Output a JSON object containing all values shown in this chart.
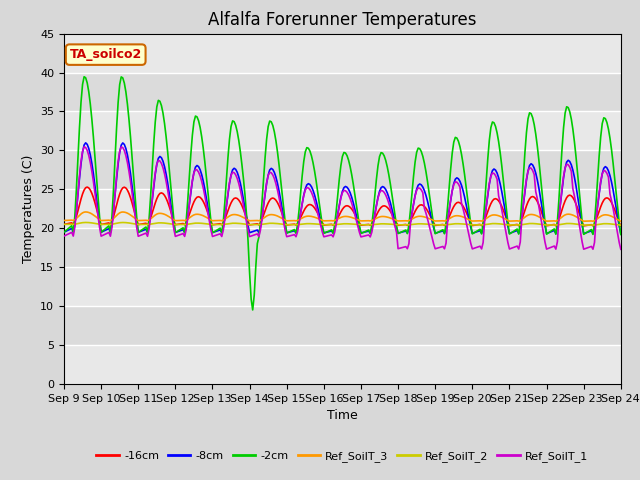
{
  "title": "Alfalfa Forerunner Temperatures",
  "xlabel": "Time",
  "ylabel": "Temperatures (C)",
  "ylim": [
    0,
    45
  ],
  "background_color": "#d8d8d8",
  "plot_bg": "#e8e8e8",
  "legend_label": "TA_soilco2",
  "series_colors": {
    "-16cm": "#ff0000",
    "-8cm": "#0000ff",
    "-2cm": "#00cc00",
    "Ref_SoilT_3": "#ff9900",
    "Ref_SoilT_2": "#cccc00",
    "Ref_SoilT_1": "#cc00cc"
  },
  "tick_labels": [
    "Sep 9",
    "Sep 10",
    "Sep 11",
    "Sep 12",
    "Sep 13",
    "Sep 14",
    "Sep 15",
    "Sep 16",
    "Sep 17",
    "Sep 18",
    "Sep 19",
    "Sep 20",
    "Sep 21",
    "Sep 22",
    "Sep 23",
    "Sep 24"
  ],
  "yticks": [
    0,
    5,
    10,
    15,
    20,
    25,
    30,
    35,
    40,
    45
  ],
  "grid_color": "#ffffff",
  "title_fontsize": 12,
  "label_fontsize": 9,
  "tick_fontsize": 8
}
